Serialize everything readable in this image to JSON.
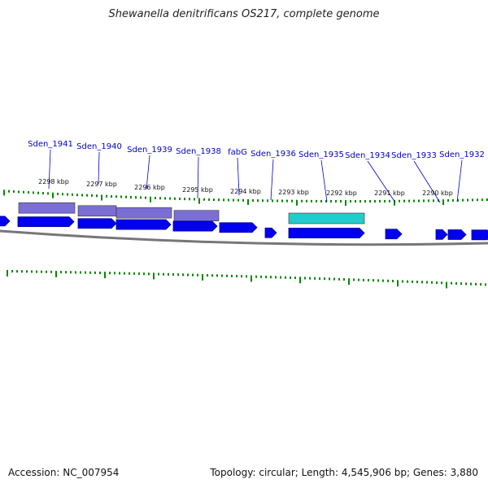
{
  "title": "Shewanella denitrificans OS217, complete genome",
  "footer": {
    "accession": "Accession: NC_007954",
    "stats": "Topology: circular; Length: 4,545,906 bp; Genes: 3,880"
  },
  "colors": {
    "cds": "#0000ee",
    "cds_stroke": "#000099",
    "feature_purple": "#7b6fd6",
    "feature_cyan": "#22cccc",
    "backbone": "#777777",
    "tick": "#008800",
    "gene_label": "#0000cc"
  },
  "scale_labels": [
    "2298 kbp",
    "2297 kbp",
    "2296 kbp",
    "2295 kbp",
    "2294 kbp",
    "2293 kbp",
    "2292 kbp",
    "2291 kbp",
    "2290 kbp"
  ],
  "gene_labels": [
    "Sden_1941",
    "Sden_1940",
    "Sden_1939",
    "Sden_1938",
    "fabG",
    "Sden_1936",
    "Sden_1935",
    "Sden_1934",
    "Sden_1933",
    "Sden_1932"
  ]
}
